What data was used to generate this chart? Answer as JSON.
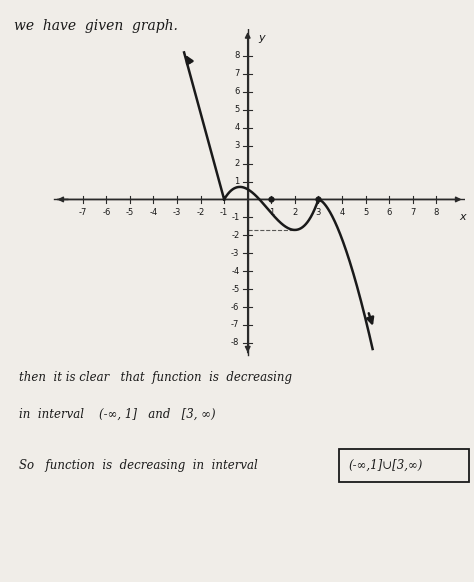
{
  "background_color": "#f0ede8",
  "curve_color": "#1a1a1a",
  "axis_color": "#2a2a2a",
  "text_color": "#1a1a1a",
  "graph": {
    "xlim": [
      -8.5,
      9.2
    ],
    "ylim": [
      -9.0,
      9.5
    ],
    "xticks": [
      -7,
      -6,
      -5,
      -4,
      -3,
      -2,
      -1,
      1,
      2,
      3,
      4,
      5,
      6,
      7,
      8
    ],
    "yticks": [
      -8,
      -7,
      -6,
      -5,
      -4,
      -3,
      -2,
      -1,
      1,
      2,
      3,
      4,
      5,
      6,
      7,
      8
    ],
    "xlabel": "x",
    "ylabel": "y"
  },
  "title_text": "we  have  given  graph.",
  "text_line1": "then  it is clear   that  function  is  decreasing",
  "text_line2": "in  interval    (-∞, 1]   and   [3, ∞)",
  "text_line3": "So   function  is  decreasing  in  interval",
  "boxed_answer": "(-∞,1]∪[3,∞)"
}
